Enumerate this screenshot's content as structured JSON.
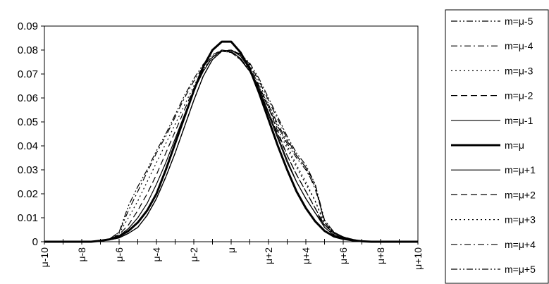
{
  "chart_data": {
    "type": "line",
    "x": [
      -10,
      -9.5,
      -9,
      -8.5,
      -8,
      -7.5,
      -7,
      -6.5,
      -6,
      -5.5,
      -5,
      -4.5,
      -4,
      -3.5,
      -3,
      -2.5,
      -2,
      -1.5,
      -1,
      -0.5,
      0,
      0.5,
      1,
      1.5,
      2,
      2.5,
      3,
      3.5,
      4,
      4.5,
      5,
      5.5,
      6,
      6.5,
      7,
      7.5,
      8,
      8.5,
      9,
      9.5,
      10
    ],
    "x_tick_values": [
      -10,
      -9,
      -8,
      -7,
      -6,
      -5,
      -4,
      -3,
      -2,
      -1,
      0,
      1,
      2,
      3,
      4,
      5,
      6,
      7,
      8,
      9,
      10
    ],
    "x_tick_labels": [
      "μ-10",
      "",
      "μ-8",
      "",
      "μ-6",
      "",
      "μ-4",
      "",
      "μ-2",
      "",
      "μ",
      "",
      "μ+2",
      "",
      "μ+4",
      "",
      "μ+6",
      "",
      "μ+8",
      "",
      "μ+10"
    ],
    "ylim": [
      0,
      0.09
    ],
    "y_ticks": [
      0,
      0.01,
      0.02,
      0.03,
      0.04,
      0.05,
      0.06,
      0.07,
      0.08,
      0.09
    ],
    "y_tick_labels": [
      "0",
      "0.01",
      "0.02",
      "0.03",
      "0.04",
      "0.05",
      "0.06",
      "0.07",
      "0.08",
      "0.09"
    ],
    "grid": false,
    "legend_position": "right",
    "series": [
      {
        "name": "m=μ-5",
        "dash": "dashdotdot",
        "width": 1.2,
        "values": [
          0,
          0,
          0,
          0,
          0,
          0,
          0.0005,
          0.0012,
          0.004,
          0.015,
          0.023,
          0.03,
          0.038,
          0.045,
          0.053,
          0.061,
          0.068,
          0.074,
          0.078,
          0.08,
          0.079,
          0.076,
          0.071,
          0.064,
          0.056,
          0.048,
          0.041,
          0.035,
          0.03,
          0.023,
          0.008,
          0.0035,
          0.002,
          0.001,
          0.0003,
          0,
          0,
          0,
          0,
          0,
          0
        ]
      },
      {
        "name": "m=μ-4",
        "dash": "dashdot",
        "width": 1.2,
        "values": [
          0,
          0,
          0,
          0,
          0,
          0,
          0.0005,
          0.0012,
          0.004,
          0.013,
          0.021,
          0.029,
          0.037,
          0.044,
          0.052,
          0.06,
          0.067,
          0.073,
          0.0775,
          0.0795,
          0.079,
          0.0765,
          0.0715,
          0.0645,
          0.057,
          0.049,
          0.042,
          0.036,
          0.031,
          0.024,
          0.008,
          0.0035,
          0.002,
          0.001,
          0.0003,
          0,
          0,
          0,
          0,
          0,
          0
        ]
      },
      {
        "name": "m=μ-3",
        "dash": "dotted",
        "width": 1.2,
        "values": [
          0,
          0,
          0,
          0,
          0,
          0,
          0.0005,
          0.0012,
          0.0035,
          0.01,
          0.017,
          0.025,
          0.033,
          0.041,
          0.049,
          0.057,
          0.065,
          0.072,
          0.077,
          0.0795,
          0.079,
          0.0765,
          0.0715,
          0.064,
          0.056,
          0.047,
          0.039,
          0.031,
          0.024,
          0.017,
          0.007,
          0.003,
          0.0018,
          0.0008,
          0.0003,
          0,
          0,
          0,
          0,
          0,
          0
        ]
      },
      {
        "name": "m=μ-2",
        "dash": "dashed",
        "width": 1.2,
        "values": [
          0,
          0,
          0,
          0,
          0,
          0,
          0.0005,
          0.001,
          0.003,
          0.007,
          0.013,
          0.02,
          0.028,
          0.037,
          0.046,
          0.055,
          0.064,
          0.0715,
          0.077,
          0.0795,
          0.079,
          0.076,
          0.071,
          0.063,
          0.054,
          0.045,
          0.036,
          0.028,
          0.021,
          0.014,
          0.006,
          0.0028,
          0.0016,
          0.0008,
          0.0003,
          0,
          0,
          0,
          0,
          0,
          0
        ]
      },
      {
        "name": "m=μ-1",
        "dash": "solid",
        "width": 1.2,
        "values": [
          0,
          0,
          0,
          0,
          0,
          0,
          0.0005,
          0.001,
          0.0025,
          0.0055,
          0.01,
          0.016,
          0.024,
          0.033,
          0.043,
          0.053,
          0.063,
          0.071,
          0.077,
          0.08,
          0.0795,
          0.0765,
          0.071,
          0.063,
          0.053,
          0.043,
          0.033,
          0.025,
          0.018,
          0.012,
          0.006,
          0.0028,
          0.0016,
          0.0008,
          0.0003,
          0,
          0,
          0,
          0,
          0,
          0
        ]
      },
      {
        "name": "m=μ",
        "dash": "solid",
        "width": 3,
        "values": [
          0,
          0,
          0,
          0,
          0,
          0,
          0.0004,
          0.001,
          0.0022,
          0.0045,
          0.008,
          0.013,
          0.02,
          0.03,
          0.041,
          0.052,
          0.063,
          0.073,
          0.08,
          0.0835,
          0.0835,
          0.079,
          0.072,
          0.062,
          0.051,
          0.04,
          0.03,
          0.021,
          0.014,
          0.0085,
          0.0045,
          0.0022,
          0.0012,
          0.0006,
          0.0002,
          0,
          0,
          0,
          0,
          0,
          0
        ]
      },
      {
        "name": "m=μ+1",
        "dash": "solid",
        "width": 1.2,
        "values": [
          0,
          0,
          0,
          0,
          0,
          0,
          0.0003,
          0.0008,
          0.0016,
          0.0035,
          0.006,
          0.011,
          0.018,
          0.027,
          0.037,
          0.048,
          0.059,
          0.069,
          0.076,
          0.0795,
          0.08,
          0.0775,
          0.072,
          0.064,
          0.054,
          0.044,
          0.034,
          0.025,
          0.018,
          0.012,
          0.007,
          0.0035,
          0.0018,
          0.0008,
          0.0003,
          0,
          0,
          0,
          0,
          0,
          0
        ]
      },
      {
        "name": "m=μ+2",
        "dash": "dashed",
        "width": 1.2,
        "values": [
          0,
          0,
          0,
          0,
          0,
          0,
          0.0003,
          0.0008,
          0.0016,
          0.0035,
          0.006,
          0.011,
          0.018,
          0.027,
          0.037,
          0.048,
          0.059,
          0.069,
          0.076,
          0.0795,
          0.08,
          0.078,
          0.073,
          0.065,
          0.056,
          0.046,
          0.036,
          0.028,
          0.021,
          0.014,
          0.007,
          0.0035,
          0.0018,
          0.0008,
          0.0003,
          0,
          0,
          0,
          0,
          0,
          0
        ]
      },
      {
        "name": "m=μ+3",
        "dash": "dotted",
        "width": 1.2,
        "values": [
          0,
          0,
          0,
          0,
          0,
          0,
          0.0003,
          0.0008,
          0.0016,
          0.0035,
          0.006,
          0.011,
          0.018,
          0.027,
          0.037,
          0.048,
          0.059,
          0.069,
          0.076,
          0.0795,
          0.08,
          0.078,
          0.0735,
          0.066,
          0.0575,
          0.049,
          0.04,
          0.032,
          0.025,
          0.017,
          0.008,
          0.004,
          0.002,
          0.0009,
          0.0003,
          0,
          0,
          0,
          0,
          0,
          0
        ]
      },
      {
        "name": "m=μ+4",
        "dash": "dashdot",
        "width": 1.2,
        "values": [
          0,
          0,
          0,
          0,
          0,
          0,
          0.0003,
          0.0008,
          0.0016,
          0.0035,
          0.006,
          0.011,
          0.018,
          0.027,
          0.037,
          0.048,
          0.059,
          0.069,
          0.076,
          0.0795,
          0.08,
          0.0782,
          0.074,
          0.067,
          0.059,
          0.051,
          0.043,
          0.036,
          0.031,
          0.022,
          0.009,
          0.004,
          0.002,
          0.0009,
          0.0003,
          0,
          0,
          0,
          0,
          0,
          0
        ]
      },
      {
        "name": "m=μ+5",
        "dash": "dashdotdot",
        "width": 1.2,
        "values": [
          0,
          0,
          0,
          0,
          0,
          0,
          0.0003,
          0.0008,
          0.0016,
          0.0035,
          0.006,
          0.011,
          0.018,
          0.027,
          0.037,
          0.048,
          0.059,
          0.069,
          0.076,
          0.0795,
          0.08,
          0.0784,
          0.0745,
          0.068,
          0.06,
          0.052,
          0.044,
          0.037,
          0.032,
          0.024,
          0.009,
          0.004,
          0.002,
          0.0009,
          0.0003,
          0,
          0,
          0,
          0,
          0,
          0
        ]
      }
    ]
  }
}
